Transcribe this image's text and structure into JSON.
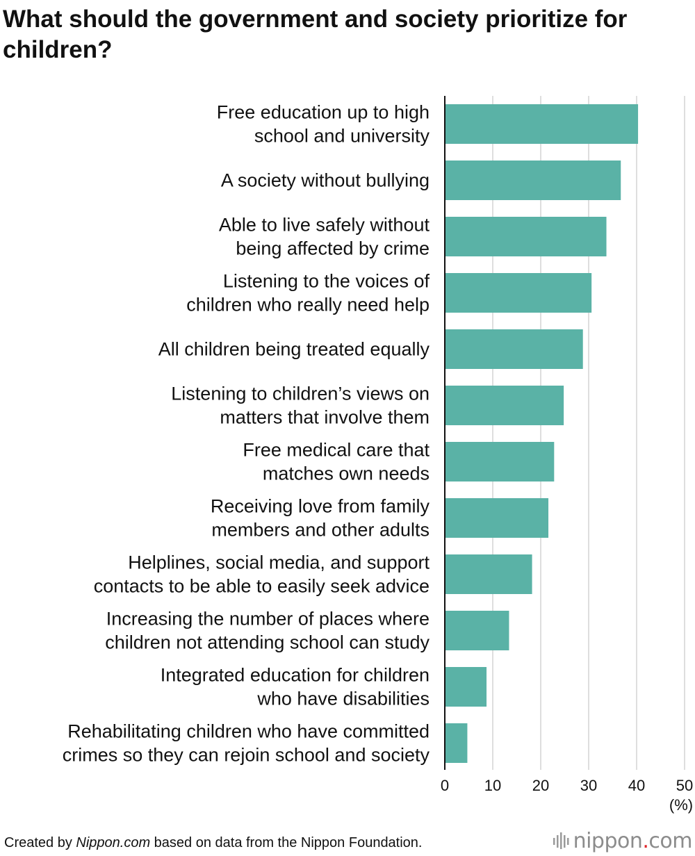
{
  "title": "What should the government and society prioritize for children?",
  "footer": {
    "prefix": "Created by ",
    "source_name": "Nippon.com",
    "suffix": " based on data from the Nippon Foundation."
  },
  "logo": {
    "name": "nippon",
    "dot": ".",
    "tld": "com"
  },
  "colors": {
    "bar": "#5ab2a6",
    "grid": "#d4d4d4",
    "axis": "#111111"
  },
  "chart_data": {
    "type": "bar",
    "orientation": "horizontal",
    "title": "What should the government and society prioritize for children?",
    "xlabel": "(%)",
    "xlim": [
      0,
      50
    ],
    "xticks": [
      0,
      10,
      20,
      30,
      40,
      50
    ],
    "grid": true,
    "categories": [
      [
        "Free education up to high",
        "school and university"
      ],
      [
        "A society without bullying"
      ],
      [
        "Able to live safely without",
        "being affected by crime"
      ],
      [
        "Listening to the voices of",
        "children who really need help"
      ],
      [
        "All children being treated equally"
      ],
      [
        "Listening to children’s views on",
        "matters that involve them"
      ],
      [
        "Free medical care that",
        "matches own needs"
      ],
      [
        "Receiving love from family",
        "members and other adults"
      ],
      [
        "Helplines, social media, and support",
        "contacts to be able to easily seek advice"
      ],
      [
        "Increasing the number of places where",
        "children not attending school can study"
      ],
      [
        "Integrated education for children",
        "who have disabilities"
      ],
      [
        "Rehabilitating children who have committed",
        "crimes so they can rejoin school and society"
      ]
    ],
    "values": [
      40.3,
      36.7,
      33.7,
      30.6,
      28.8,
      24.8,
      22.8,
      21.6,
      18.2,
      13.4,
      8.7,
      4.7
    ]
  }
}
